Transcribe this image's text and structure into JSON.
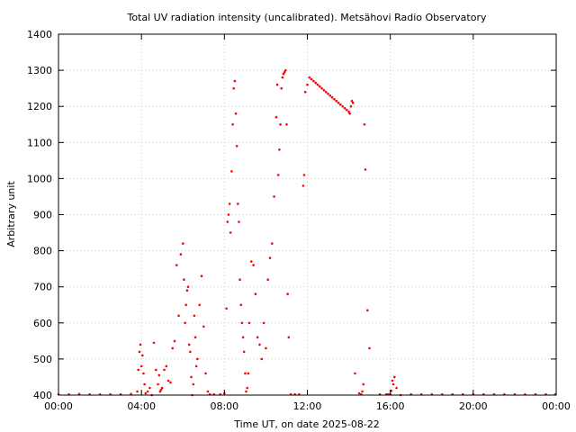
{
  "chart_data": {
    "type": "scatter",
    "title": "Total UV radiation intensity (uncalibrated). Metsähovi Radio Observatory",
    "xlabel": "Time UT, on date 2025-08-22",
    "ylabel": "Arbitrary unit",
    "xlim": [
      0,
      24
    ],
    "ylim": [
      400,
      1400
    ],
    "x_ticks": [
      0,
      4,
      8,
      12,
      16,
      20,
      24
    ],
    "x_tick_labels": [
      "00:00",
      "04:00",
      "08:00",
      "12:00",
      "16:00",
      "20:00",
      "00:00"
    ],
    "y_ticks": [
      400,
      500,
      600,
      700,
      800,
      900,
      1000,
      1100,
      1200,
      1300,
      1400
    ],
    "y_tick_labels": [
      "400",
      "500",
      "600",
      "700",
      "800",
      "900",
      "1000",
      "1100",
      "1200",
      "1300",
      "1400"
    ],
    "grid": true,
    "marker_color": "#ff0000",
    "series": [
      {
        "x": [
          0.0,
          0.5,
          1.0,
          1.5,
          2.0,
          2.5,
          3.0,
          3.5,
          3.8,
          3.85,
          3.9,
          3.95,
          4.0,
          4.05,
          4.1,
          4.15,
          4.2,
          4.3,
          4.4,
          4.5,
          4.6,
          4.7,
          4.8,
          4.85,
          4.9,
          4.95,
          5.0,
          5.1,
          5.2,
          5.3,
          5.4,
          5.5,
          5.6,
          5.7,
          5.8,
          5.9,
          6.0,
          6.05,
          6.1,
          6.15,
          6.2,
          6.25,
          6.3,
          6.35,
          6.4,
          6.45,
          6.5,
          6.55,
          6.6,
          6.65,
          6.7,
          6.8,
          6.9,
          7.0,
          7.1,
          7.2,
          7.3,
          7.5,
          7.8,
          8.0,
          8.1,
          8.15,
          8.2,
          8.25,
          8.3,
          8.35,
          8.4,
          8.45,
          8.5,
          8.55,
          8.6,
          8.65,
          8.7,
          8.75,
          8.8,
          8.85,
          8.9,
          8.95,
          9.0,
          9.05,
          9.1,
          9.15,
          9.2,
          9.3,
          9.4,
          9.5,
          9.6,
          9.7,
          9.8,
          9.9,
          10.0,
          10.1,
          10.2,
          10.3,
          10.4,
          10.5,
          10.55,
          10.6,
          10.65,
          10.7,
          10.75,
          10.8,
          10.85,
          10.9,
          10.95,
          11.0,
          11.05,
          11.1,
          11.2,
          11.4,
          11.6,
          11.8,
          11.85,
          11.9,
          12.0,
          12.1,
          12.2,
          12.3,
          12.4,
          12.5,
          12.6,
          12.7,
          12.8,
          12.9,
          13.0,
          13.1,
          13.2,
          13.3,
          13.4,
          13.5,
          13.6,
          13.7,
          13.8,
          13.9,
          14.0,
          14.05,
          14.1,
          14.15,
          14.2,
          14.3,
          14.5,
          14.6,
          14.65,
          14.7,
          14.75,
          14.8,
          14.9,
          15.0,
          15.5,
          15.8,
          15.9,
          16.0,
          16.05,
          16.1,
          16.15,
          16.2,
          16.3,
          16.5,
          17.0,
          17.5,
          18.0,
          18.5,
          19.0,
          19.5,
          20.0,
          20.5,
          21.0,
          21.5,
          22.0,
          22.5,
          23.0,
          23.5,
          23.95
        ],
        "y": [
          402,
          402,
          403,
          402,
          402,
          402,
          402,
          403,
          410,
          470,
          520,
          540,
          480,
          510,
          460,
          430,
          405,
          410,
          420,
          400,
          545,
          470,
          430,
          455,
          410,
          415,
          420,
          470,
          480,
          440,
          435,
          530,
          550,
          760,
          620,
          790,
          820,
          720,
          600,
          650,
          690,
          700,
          540,
          520,
          450,
          400,
          430,
          620,
          560,
          480,
          500,
          650,
          730,
          590,
          460,
          410,
          402,
          402,
          402,
          405,
          640,
          880,
          900,
          930,
          850,
          1020,
          1150,
          1250,
          1270,
          1180,
          1090,
          930,
          880,
          720,
          650,
          600,
          560,
          520,
          460,
          410,
          420,
          460,
          600,
          770,
          760,
          680,
          560,
          540,
          500,
          600,
          530,
          720,
          780,
          820,
          950,
          1170,
          1260,
          1010,
          1080,
          1150,
          1250,
          1280,
          1290,
          1295,
          1300,
          1150,
          680,
          560,
          402,
          402,
          402,
          980,
          1010,
          1240,
          1260,
          1280,
          1275,
          1270,
          1265,
          1260,
          1255,
          1250,
          1245,
          1240,
          1235,
          1230,
          1225,
          1220,
          1215,
          1210,
          1205,
          1200,
          1195,
          1190,
          1185,
          1180,
          1200,
          1215,
          1210,
          460,
          405,
          402,
          410,
          430,
          1150,
          1025,
          635,
          530,
          402,
          402,
          402,
          402,
          412,
          440,
          430,
          450,
          420,
          400,
          402,
          402,
          402,
          402,
          402,
          402,
          402,
          402,
          402,
          402,
          402,
          402,
          402,
          402,
          402
        ]
      }
    ]
  }
}
